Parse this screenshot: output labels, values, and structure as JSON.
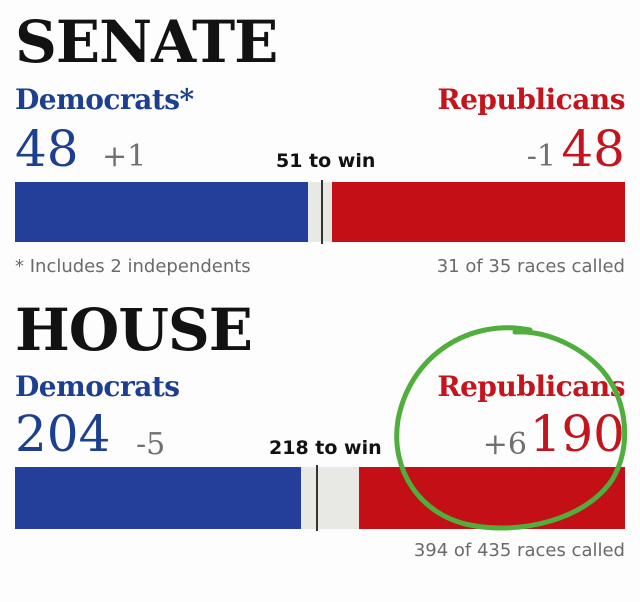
{
  "chart_data": [
    {
      "type": "bar",
      "title": "SENATE",
      "total_seats": 100,
      "majority_label": "51 to win",
      "majority": 51,
      "series": [
        {
          "name": "Democrats*",
          "seats": 48,
          "seats_label": "48",
          "change": "+1",
          "color": "#233f99"
        },
        {
          "name": "Republicans",
          "seats": 48,
          "seats_label": "48",
          "change": "-1",
          "color": "#c40f16"
        }
      ],
      "footnote": "* Includes 2 independents",
      "races_called": "31 of 35 races called"
    },
    {
      "type": "bar",
      "title": "HOUSE",
      "total_seats": 435,
      "majority_label": "218 to win",
      "majority": 218,
      "series": [
        {
          "name": "Democrats",
          "seats": 204,
          "seats_label": "204",
          "change": "-5",
          "color": "#233f99"
        },
        {
          "name": "Republicans",
          "seats": 190,
          "seats_label": "190",
          "change": "+6",
          "color": "#c40f16"
        }
      ],
      "footnote": "",
      "races_called": "394 of 435 races called"
    }
  ],
  "colors": {
    "uncalled": "#e8e8e4",
    "annotation_circle": "#4fae3c"
  }
}
